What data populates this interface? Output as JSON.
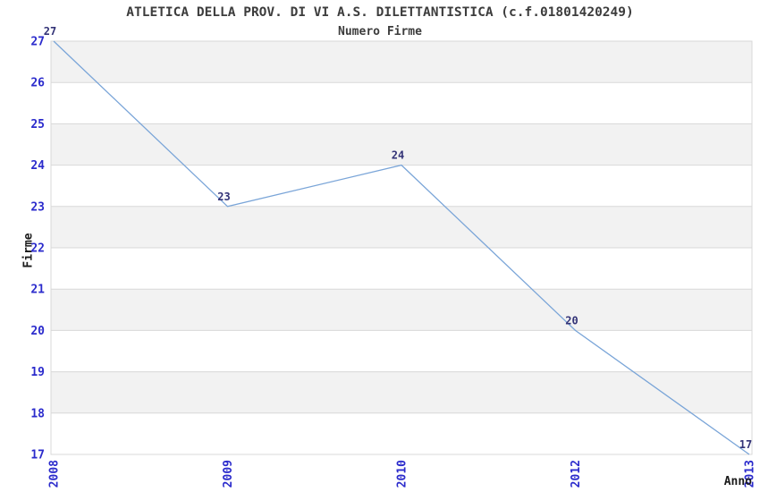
{
  "chart_data": {
    "type": "line",
    "title": "ATLETICA DELLA PROV. DI VI A.S. DILETTANTISTICA (c.f.01801420249)",
    "subtitle": "Numero Firme",
    "xlabel": "Anno",
    "ylabel": "Firme",
    "categories": [
      "2008",
      "2009",
      "2010",
      "2012",
      "2013"
    ],
    "values": [
      27,
      23,
      24,
      20,
      17
    ],
    "point_labels": [
      "27",
      "23",
      "24",
      "20",
      "17"
    ],
    "ylim": [
      17,
      27
    ],
    "ytick_step": 1,
    "grid": "horizontal",
    "bands": "alternating-gray",
    "legend": "none",
    "colors": {
      "line": "#7aa5d8",
      "axis_tick_label": "#2b2bcc",
      "point_label": "#333377",
      "band_gray": "#f2f2f2",
      "gridline": "#d8d8d8",
      "border": "#d8d8d8",
      "title_text": "#3c3c3c",
      "axis_title_text": "#1a1a1a",
      "background": "#ffffff"
    }
  }
}
